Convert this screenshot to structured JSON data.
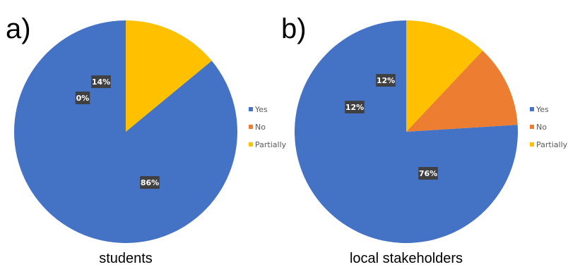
{
  "chart_data": [
    {
      "type": "pie",
      "panel_label": "a)",
      "caption": "students",
      "categories": [
        "Yes",
        "No",
        "Partially"
      ],
      "values": [
        86,
        0,
        14
      ],
      "data_labels": [
        "86%",
        "0%",
        "14%"
      ],
      "colors": [
        "#4472C4",
        "#ED7D31",
        "#FFC000"
      ],
      "legend_placement": "right"
    },
    {
      "type": "pie",
      "panel_label": "b)",
      "caption": "local stakeholders",
      "categories": [
        "Yes",
        "No",
        "Partially"
      ],
      "values": [
        76,
        12,
        12
      ],
      "data_labels": [
        "76%",
        "12%",
        "12%"
      ],
      "colors": [
        "#4472C4",
        "#ED7D31",
        "#FFC000"
      ],
      "legend_placement": "right"
    }
  ]
}
